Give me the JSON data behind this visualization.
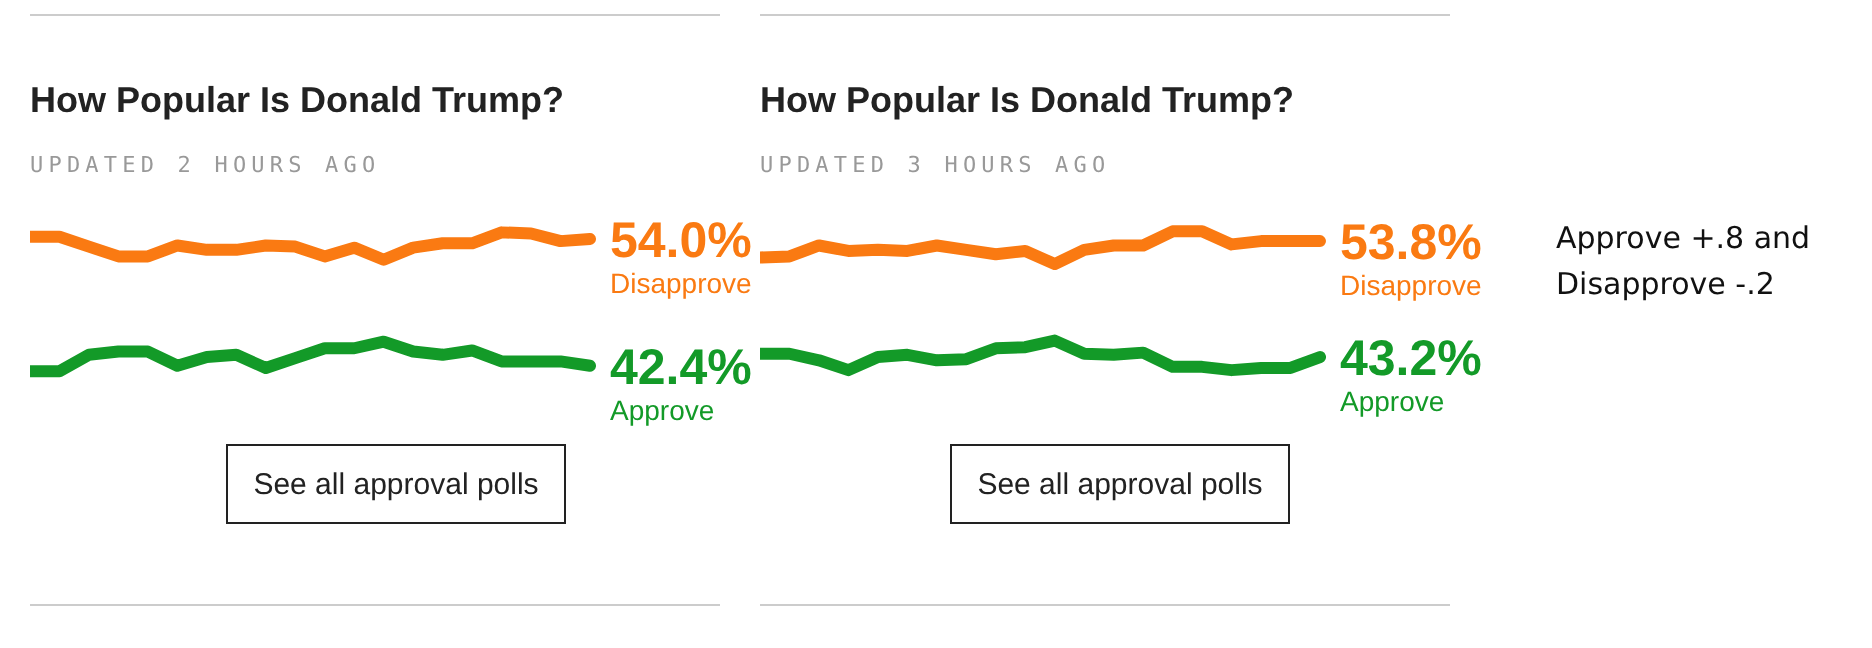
{
  "chart_data": [
    {
      "type": "line",
      "title": "How Popular Is Donald Trump?",
      "subtitle": "UPDATED 2 HOURS AGO",
      "annotations": [
        "See all approval polls"
      ],
      "categories": [
        null,
        null,
        null,
        null,
        null,
        null,
        null,
        null,
        null,
        null,
        null,
        null,
        null,
        null,
        null,
        null,
        null,
        null,
        null,
        null
      ],
      "marker": "none",
      "series": [
        {
          "name": "Disapprove",
          "color": "#fa7a12",
          "values": [
            54.2,
            54.2,
            53.3,
            52.4,
            52.4,
            53.4,
            53.0,
            53.0,
            53.4,
            53.3,
            52.4,
            53.2,
            52.1,
            53.2,
            53.6,
            53.6,
            54.6,
            54.5,
            53.8,
            54.0
          ],
          "value_labels": [
            null,
            null,
            null,
            null,
            null,
            null,
            null,
            null,
            null,
            null,
            null,
            null,
            null,
            null,
            null,
            null,
            null,
            null,
            null,
            "54.0%"
          ]
        },
        {
          "name": "Approve",
          "color": "#139a28",
          "values": [
            41.9,
            41.9,
            43.4,
            43.7,
            43.7,
            42.4,
            43.2,
            43.4,
            42.2,
            43.1,
            44.0,
            44.0,
            44.6,
            43.7,
            43.4,
            43.8,
            42.8,
            42.8,
            42.8,
            42.4
          ],
          "value_labels": [
            null,
            null,
            null,
            null,
            null,
            null,
            null,
            null,
            null,
            null,
            null,
            null,
            null,
            null,
            null,
            null,
            null,
            null,
            null,
            "42.4%"
          ]
        }
      ]
    },
    {
      "type": "line",
      "title": "How Popular Is Donald Trump?",
      "subtitle": "UPDATED 3 HOURS AGO",
      "annotations": [
        "See all approval polls"
      ],
      "categories": [
        null,
        null,
        null,
        null,
        null,
        null,
        null,
        null,
        null,
        null,
        null,
        null,
        null,
        null,
        null,
        null,
        null,
        null,
        null,
        null
      ],
      "marker": "none",
      "series": [
        {
          "name": "Disapprove",
          "color": "#fa7a12",
          "values": [
            52.3,
            52.4,
            53.4,
            52.9,
            53.0,
            52.9,
            53.4,
            53.0,
            52.6,
            52.9,
            51.7,
            53.0,
            53.4,
            53.4,
            54.7,
            54.7,
            53.5,
            53.8,
            53.8,
            53.8
          ],
          "value_labels": [
            null,
            null,
            null,
            null,
            null,
            null,
            null,
            null,
            null,
            null,
            null,
            null,
            null,
            null,
            null,
            null,
            null,
            null,
            null,
            "53.8%"
          ]
        },
        {
          "name": "Approve",
          "color": "#139a28",
          "values": [
            43.5,
            43.5,
            42.9,
            42.0,
            43.2,
            43.4,
            42.9,
            43.0,
            44.0,
            44.1,
            44.7,
            43.5,
            43.4,
            43.6,
            42.3,
            42.3,
            42.0,
            42.2,
            42.2,
            43.2
          ],
          "value_labels": [
            null,
            null,
            null,
            null,
            null,
            null,
            null,
            null,
            null,
            null,
            null,
            null,
            null,
            null,
            null,
            null,
            null,
            null,
            null,
            "43.2%"
          ]
        }
      ]
    },
    {
      "type": "other",
      "annotations": [
        "Approve +.8 and Disapprove -.2"
      ]
    }
  ]
}
